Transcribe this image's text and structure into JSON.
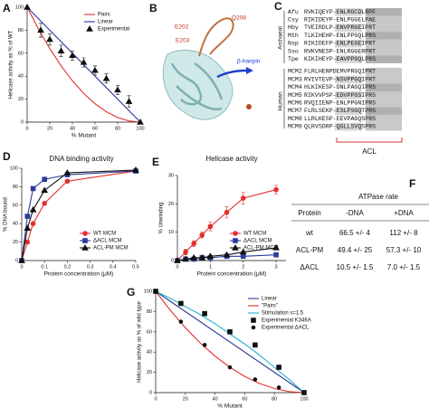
{
  "chart_data": [
    {
      "type": "line",
      "panel": "A",
      "xlabel": "% Mutant",
      "ylabel": "Helicase activity as % of WT",
      "xlim": [
        0,
        100
      ],
      "ylim": [
        0,
        100
      ],
      "xticks": [
        0,
        20,
        40,
        60,
        80,
        100
      ],
      "yticks": [
        0,
        20,
        40,
        60,
        80,
        100
      ],
      "grid": false,
      "legend": "upper right",
      "series": [
        {
          "name": "Pairs",
          "color": "#e03030",
          "marker": "none",
          "line": true,
          "x": [
            0,
            10,
            20,
            30,
            40,
            50,
            60,
            70,
            80,
            90,
            100
          ],
          "values": [
            100,
            81,
            64,
            49,
            36,
            25,
            16,
            9,
            4,
            1,
            0
          ]
        },
        {
          "name": "Linear",
          "color": "#2a3a9a",
          "marker": "none",
          "line": true,
          "x": [
            0,
            100
          ],
          "values": [
            100,
            0
          ]
        },
        {
          "name": "Experimental",
          "color": "#111111",
          "marker": "triangle",
          "line": false,
          "x": [
            0,
            12,
            20,
            30,
            40,
            50,
            60,
            70,
            80,
            90,
            100
          ],
          "values": [
            100,
            80,
            72,
            62,
            58,
            52,
            45,
            38,
            28,
            18,
            0
          ],
          "errors": [
            0,
            6,
            5,
            5,
            4,
            4,
            4,
            4,
            4,
            5,
            0
          ]
        }
      ]
    },
    {
      "type": "line",
      "panel": "D",
      "title": "DNA binding activity",
      "xlabel": "Protein concentration (μM)",
      "ylabel": "% DNA bound",
      "xlim": [
        0,
        0.5
      ],
      "ylim": [
        0,
        100
      ],
      "xticks": [
        0,
        0.1,
        0.2,
        0.3,
        0.4,
        0.5
      ],
      "yticks": [
        0,
        20,
        40,
        60,
        80,
        100
      ],
      "grid": false,
      "legend": "lower right",
      "series": [
        {
          "name": "WT MCM",
          "color": "#e03030",
          "marker": "circle",
          "line": true,
          "x": [
            0,
            0.025,
            0.05,
            0.1,
            0.2,
            0.5
          ],
          "values": [
            0,
            20,
            40,
            62,
            86,
            97
          ]
        },
        {
          "name": "ΔACL MCM",
          "color": "#2a3a9a",
          "marker": "square",
          "line": true,
          "x": [
            0,
            0.025,
            0.05,
            0.1,
            0.2,
            0.5
          ],
          "values": [
            0,
            48,
            78,
            88,
            93,
            97
          ]
        },
        {
          "name": "ACL-PM MCM",
          "color": "#111111",
          "marker": "triangle",
          "line": true,
          "x": [
            0,
            0.025,
            0.05,
            0.1,
            0.2,
            0.5
          ],
          "values": [
            0,
            35,
            55,
            76,
            95,
            98
          ]
        }
      ]
    },
    {
      "type": "line",
      "panel": "E",
      "title": "Helicase activity",
      "xlabel": "Protein concentration (μM)",
      "ylabel": "% Unwinding",
      "xlim": [
        0,
        3.3
      ],
      "ylim": [
        0,
        30
      ],
      "xticks": [
        0,
        1,
        2,
        3
      ],
      "yticks": [
        0,
        10,
        20,
        30
      ],
      "grid": false,
      "legend": "lower right",
      "series": [
        {
          "name": "WT MCM",
          "color": "#e03030",
          "marker": "circle",
          "line": true,
          "x": [
            0,
            0.25,
            0.5,
            0.75,
            1,
            1.5,
            2,
            3
          ],
          "values": [
            0,
            3,
            6,
            9,
            12,
            17,
            22,
            25
          ],
          "errors": [
            0,
            1,
            1,
            1,
            1.5,
            2,
            2,
            1.5
          ]
        },
        {
          "name": "ΔACL MCM",
          "color": "#2a3a9a",
          "marker": "square",
          "line": true,
          "x": [
            0,
            0.25,
            0.5,
            0.75,
            1,
            1.5,
            2,
            3
          ],
          "values": [
            0,
            0.5,
            0.5,
            1,
            1,
            1.5,
            1.5,
            2
          ]
        },
        {
          "name": "ACL-PM MCM",
          "color": "#111111",
          "marker": "triangle",
          "line": true,
          "x": [
            0,
            0.25,
            0.5,
            0.75,
            1,
            1.5,
            2,
            3
          ],
          "values": [
            0,
            0.5,
            1,
            1,
            1.5,
            2,
            3,
            4.5
          ]
        }
      ]
    },
    {
      "type": "line",
      "panel": "G",
      "xlabel": "% Mutant",
      "ylabel": "Helicase activity as % of wild type",
      "xlim": [
        0,
        100
      ],
      "ylim": [
        0,
        100
      ],
      "xticks": [
        0,
        20,
        40,
        60,
        80,
        100
      ],
      "yticks": [
        0,
        20,
        40,
        60,
        80,
        100
      ],
      "grid": false,
      "legend": "upper right",
      "series": [
        {
          "name": "Linear",
          "color": "#2a3a9a",
          "marker": "none",
          "line": true,
          "x": [
            0,
            100
          ],
          "values": [
            100,
            0
          ]
        },
        {
          "name": "\"Pairs\"",
          "color": "#e03030",
          "marker": "none",
          "line": true,
          "x": [
            0,
            10,
            20,
            30,
            40,
            50,
            60,
            70,
            80,
            90,
            100
          ],
          "values": [
            100,
            81,
            64,
            49,
            36,
            25,
            16,
            9,
            4,
            1,
            0
          ]
        },
        {
          "name": "Stimulation s=1.5",
          "color": "#20b0d0",
          "marker": "none",
          "line": true,
          "x": [
            0,
            10,
            20,
            30,
            40,
            50,
            60,
            70,
            80,
            90,
            100
          ],
          "values": [
            100,
            93,
            85,
            77,
            68,
            58,
            48,
            37,
            25,
            13,
            0
          ]
        },
        {
          "name": "Experimental K346A",
          "color": "#111111",
          "marker": "square",
          "line": false,
          "x": [
            0,
            17,
            33,
            50,
            67,
            83,
            100
          ],
          "values": [
            100,
            88,
            78,
            60,
            47,
            25,
            0
          ]
        },
        {
          "name": "Experimental ΔACL",
          "color": "#111111",
          "marker": "dot",
          "line": false,
          "x": [
            0,
            17,
            33,
            50,
            67,
            83,
            100
          ],
          "values": [
            100,
            70,
            47,
            25,
            13,
            5,
            0
          ]
        }
      ]
    }
  ],
  "structure": {
    "panel": "B",
    "labels": [
      "E202",
      "Q208",
      "E203",
      "β-hairpin"
    ]
  },
  "alignment": {
    "panel": "C",
    "groups": [
      "Archaeal",
      "Human"
    ],
    "region": "ACL",
    "names": [
      "Afu",
      "Csy",
      "Hby",
      "Mth",
      "Nsp",
      "Sso",
      "Tpe",
      "MCM2",
      "MCM3",
      "MCM4",
      "MCM5",
      "MCM6",
      "MCM7",
      "MCM8",
      "MCM9"
    ],
    "sequences": [
      "RVKIQEYP-ENLRGCDLRPF",
      "RIKIDEYP-ENLPGGELPAE",
      "TVEIRDLP-ENVPRGEIPRT",
      "TLKIHEHP-ENLPPGQLPRS",
      "RIKIDEFP-ENLPEGEIPRT",
      "RVKVNESP-ENLRGGERPRT",
      "KIKIHEYP-EAVPPGQLPRS",
      "FLRLHENPDEMVPRGQIPRT",
      "RVIVTEVP-NSVPPGQIPRT",
      "HLKIKESP-DNLPAGQIPRS",
      "RIKVVPSP-EDVPPGSIPRS",
      "RVQIIENP-ENLPPGNIPRS",
      "FLRLSEKP-ESLPSGQTPRS",
      "LLRLKESP-EEVPAGQSPRS",
      "QLRVSDRP-QGLLSVQSPRS"
    ]
  },
  "atpase_table": {
    "panel": "F",
    "title": "ATPase rate",
    "header": [
      "Protein",
      "-DNA",
      "+DNA"
    ],
    "rows": [
      [
        "wt",
        "66.5 +/- 4",
        "112 +/- 8"
      ],
      [
        "ACL-PM",
        "49.4 +/- 25",
        "57.3 +/- 10"
      ],
      [
        "ΔACL",
        "10.5 +/- 1.5",
        "7.0 +/- 1.5"
      ]
    ]
  }
}
